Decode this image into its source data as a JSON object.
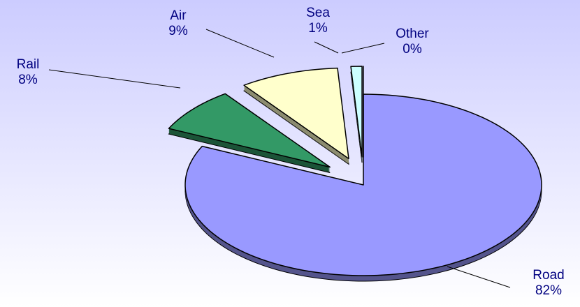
{
  "chart_data": {
    "type": "pie",
    "categories": [
      "Road",
      "Rail",
      "Air",
      "Sea",
      "Other"
    ],
    "values": [
      82,
      8,
      9,
      1,
      0
    ],
    "value_labels": [
      "82%",
      "8%",
      "9%",
      "1%",
      "0%"
    ],
    "colors": [
      "#9999ff",
      "#339966",
      "#ffffcc",
      "#ccffff",
      "#ccffff"
    ]
  }
}
